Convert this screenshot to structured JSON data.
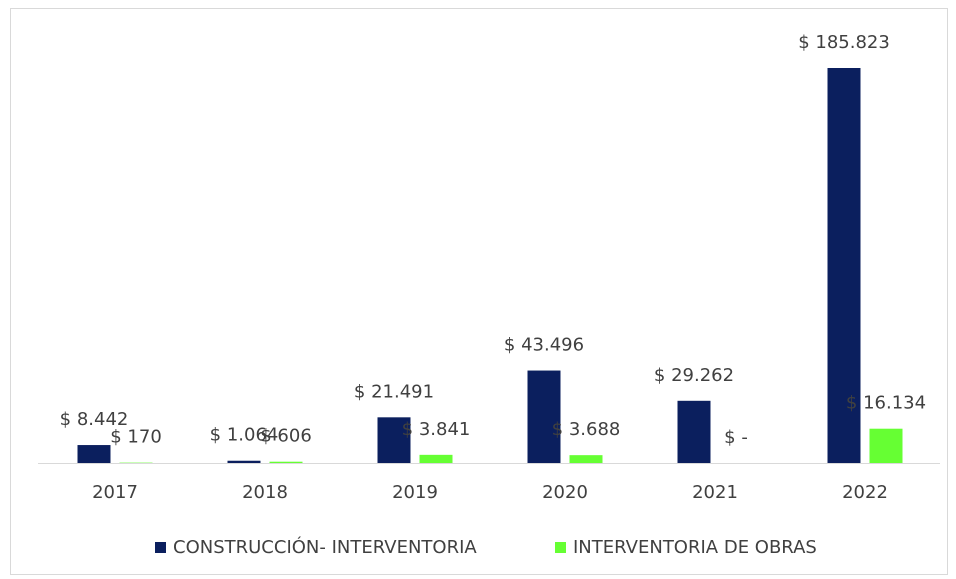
{
  "chart_data": {
    "type": "bar",
    "categories": [
      "2017",
      "2018",
      "2019",
      "2020",
      "2021",
      "2022"
    ],
    "series": [
      {
        "name": "CONSTRUCCIÓN- INTERVENTORIA",
        "color": "#0b1f5e",
        "values": [
          8442,
          1064,
          21491,
          43496,
          29262,
          185823
        ],
        "value_labels": [
          "$ 8.442",
          "$ 1.064",
          "$ 21.491",
          "$ 43.496",
          "$ 29.262",
          "$ 185.823"
        ]
      },
      {
        "name": "INTERVENTORIA DE OBRAS",
        "color": "#66ff33",
        "values": [
          170,
          606,
          3841,
          3688,
          0,
          16134
        ],
        "value_labels": [
          "$ 170",
          "$ 606",
          "$ 3.841",
          "$ 3.688",
          "$ -",
          "$ 16.134"
        ]
      }
    ]
  }
}
